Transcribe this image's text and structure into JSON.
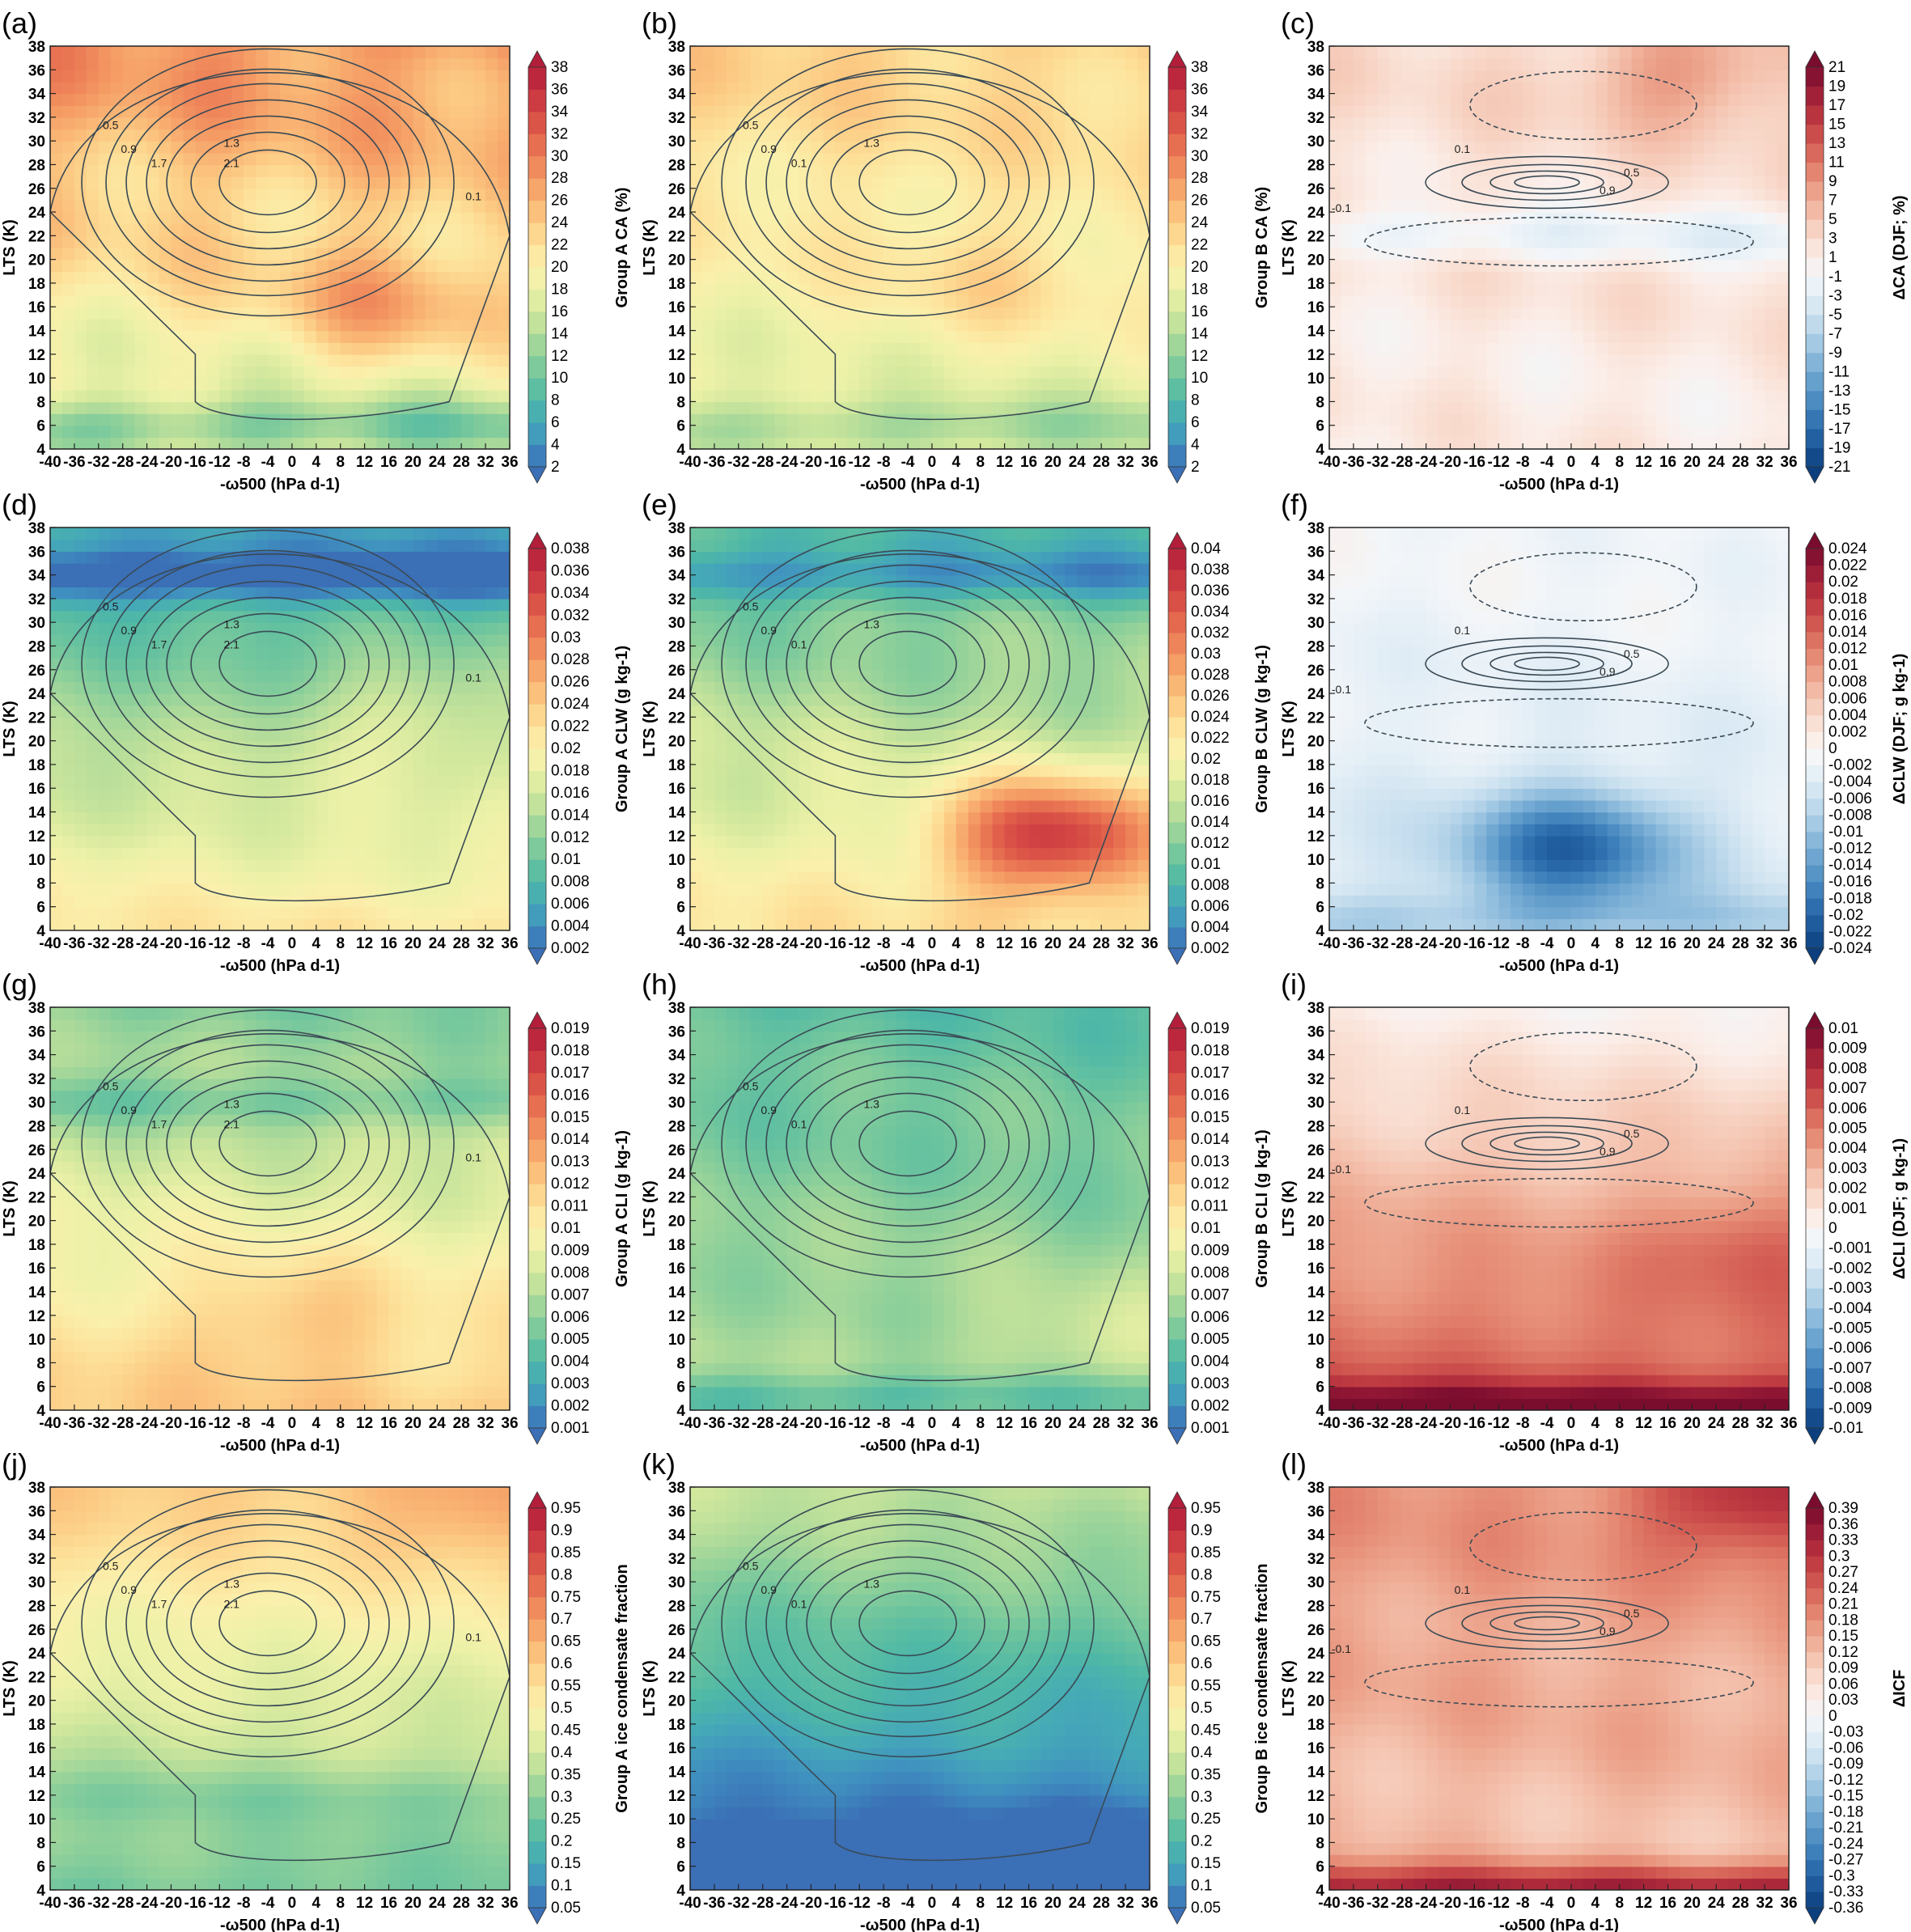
{
  "chart_data": [
    {
      "panel": "(a)",
      "type": "heatmap",
      "xlabel": "-ω500 (hPa d-1)",
      "ylabel": "LTS (K)",
      "x_ticks": [
        -40,
        -36,
        -32,
        -28,
        -24,
        -20,
        -16,
        -12,
        -8,
        -4,
        0,
        4,
        8,
        12,
        16,
        20,
        24,
        28,
        32,
        36
      ],
      "y_ticks": [
        4,
        6,
        8,
        10,
        12,
        14,
        16,
        18,
        20,
        22,
        24,
        26,
        28,
        30,
        32,
        34,
        36,
        38
      ],
      "xlim": [
        -40,
        36
      ],
      "ylim": [
        4,
        38
      ],
      "colorbar": {
        "title": "Group A CA (%)",
        "levels": [
          2,
          4,
          6,
          8,
          10,
          12,
          14,
          16,
          18,
          20,
          22,
          24,
          26,
          28,
          30,
          32,
          34,
          36,
          38
        ],
        "palette": "diverging-blue-green-yellow-red",
        "label_every": 1
      },
      "field": {
        "base": 22,
        "gradient": 0.35,
        "wave_amp": 3,
        "hot_x": 16,
        "hot_y": 16,
        "hot_amp": 6,
        "low_band_y": 6,
        "low_band_amp": -6
      },
      "contour_labels": [
        "0.5",
        "0.9",
        "1.3",
        "1.7",
        "2.1",
        "0.1"
      ],
      "contours_dashed": false
    },
    {
      "panel": "(b)",
      "type": "heatmap",
      "xlabel": "-ω500 (hPa d-1)",
      "ylabel": "LTS (K)",
      "x_ticks": [
        -40,
        -36,
        -32,
        -28,
        -24,
        -20,
        -16,
        -12,
        -8,
        -4,
        0,
        4,
        8,
        12,
        16,
        20,
        24,
        28,
        32,
        36
      ],
      "y_ticks": [
        4,
        6,
        8,
        10,
        12,
        14,
        16,
        18,
        20,
        22,
        24,
        26,
        28,
        30,
        32,
        34,
        36,
        38
      ],
      "xlim": [
        -40,
        36
      ],
      "ylim": [
        4,
        38
      ],
      "colorbar": {
        "title": "Group B CA (%)",
        "levels": [
          2,
          4,
          6,
          8,
          10,
          12,
          14,
          16,
          18,
          20,
          22,
          24,
          26,
          28,
          30,
          32,
          34,
          36,
          38
        ],
        "palette": "diverging-blue-green-yellow-red",
        "label_every": 1
      },
      "field": {
        "base": 20,
        "gradient": 0.2,
        "wave_amp": 2,
        "hot_x": 10,
        "hot_y": 18,
        "hot_amp": 3,
        "low_band_y": 6,
        "low_band_amp": -4
      },
      "contour_labels": [
        "0.5",
        "0.9",
        "1.3",
        "0.1"
      ],
      "contours_dashed": false
    },
    {
      "panel": "(c)",
      "type": "heatmap",
      "xlabel": "-ω500 (hPa d-1)",
      "ylabel": "LTS (K)",
      "x_ticks": [
        -40,
        -36,
        -32,
        -28,
        -24,
        -20,
        -16,
        -12,
        -8,
        -4,
        0,
        4,
        8,
        12,
        16,
        20,
        24,
        28,
        32,
        36
      ],
      "y_ticks": [
        4,
        6,
        8,
        10,
        12,
        14,
        16,
        18,
        20,
        22,
        24,
        26,
        28,
        30,
        32,
        34,
        36,
        38
      ],
      "xlim": [
        -40,
        36
      ],
      "ylim": [
        4,
        38
      ],
      "colorbar": {
        "title": "ΔCA (DJF; %)",
        "levels": [
          -21,
          -19,
          -17,
          -15,
          -13,
          -11,
          -9,
          -7,
          -5,
          -3,
          -1,
          1,
          3,
          5,
          7,
          9,
          11,
          13,
          15,
          17,
          19,
          21
        ],
        "palette": "diverging-red-blue",
        "label_every": 1
      },
      "field": {
        "base": 2,
        "gradient": 0.05,
        "wave_amp": 2,
        "hot_x": 20,
        "hot_y": 36,
        "hot_amp": 6,
        "low_band_y": 22,
        "low_band_amp": -4
      },
      "contour_labels": [
        "0.1",
        "0.5",
        "0.9",
        "-0.1"
      ],
      "contours_dashed": true
    },
    {
      "panel": "(d)",
      "type": "heatmap",
      "xlabel": "-ω500 (hPa d-1)",
      "ylabel": "LTS (K)",
      "x_ticks": [
        -40,
        -36,
        -32,
        -28,
        -24,
        -20,
        -16,
        -12,
        -8,
        -4,
        0,
        4,
        8,
        12,
        16,
        20,
        24,
        28,
        32,
        36
      ],
      "y_ticks": [
        4,
        6,
        8,
        10,
        12,
        14,
        16,
        18,
        20,
        22,
        24,
        26,
        28,
        30,
        32,
        34,
        36,
        38
      ],
      "xlim": [
        -40,
        36
      ],
      "ylim": [
        4,
        38
      ],
      "colorbar": {
        "title": "Group A CLW (g kg-1)",
        "levels": [
          0.002,
          0.004,
          0.006,
          0.008,
          0.01,
          0.012,
          0.014,
          0.016,
          0.018,
          0.02,
          0.022,
          0.024,
          0.026,
          0.028,
          0.03,
          0.032,
          0.034,
          0.036,
          0.038
        ],
        "palette": "diverging-blue-green-yellow-red",
        "label_every": 1
      },
      "field": {
        "base": 0.014,
        "gradient": -0.00045,
        "wave_amp": 0.0015,
        "hot_x": 20,
        "hot_y": 22,
        "hot_amp": 0.004,
        "low_band_y": 34,
        "low_band_amp": -0.008
      },
      "contour_labels": [
        "0.5",
        "0.9",
        "1.3",
        "1.7",
        "2.1",
        "0.1"
      ],
      "contours_dashed": false
    },
    {
      "panel": "(e)",
      "type": "heatmap",
      "xlabel": "-ω500 (hPa d-1)",
      "ylabel": "LTS (K)",
      "x_ticks": [
        -40,
        -36,
        -32,
        -28,
        -24,
        -20,
        -16,
        -12,
        -8,
        -4,
        0,
        4,
        8,
        12,
        16,
        20,
        24,
        28,
        32,
        36
      ],
      "y_ticks": [
        4,
        6,
        8,
        10,
        12,
        14,
        16,
        18,
        20,
        22,
        24,
        26,
        28,
        30,
        32,
        34,
        36,
        38
      ],
      "xlim": [
        -40,
        36
      ],
      "ylim": [
        4,
        38
      ],
      "colorbar": {
        "title": "Group B CLW (g kg-1)",
        "levels": [
          0.002,
          0.004,
          0.006,
          0.008,
          0.01,
          0.012,
          0.014,
          0.016,
          0.018,
          0.02,
          0.022,
          0.024,
          0.026,
          0.028,
          0.03,
          0.032,
          0.034,
          0.036,
          0.038,
          0.04
        ],
        "palette": "diverging-blue-green-yellow-red",
        "label_every": 1
      },
      "field": {
        "base": 0.016,
        "gradient": -0.0004,
        "wave_amp": 0.002,
        "hot_x": 20,
        "hot_y": 12,
        "hot_amp": 0.018,
        "low_band_y": 34,
        "low_band_amp": -0.006
      },
      "contour_labels": [
        "0.5",
        "0.9",
        "1.3",
        "0.1"
      ],
      "contours_dashed": false
    },
    {
      "panel": "(f)",
      "type": "heatmap",
      "xlabel": "-ω500 (hPa d-1)",
      "ylabel": "LTS (K)",
      "x_ticks": [
        -40,
        -36,
        -32,
        -28,
        -24,
        -20,
        -16,
        -12,
        -8,
        -4,
        0,
        4,
        8,
        12,
        16,
        20,
        24,
        28,
        32,
        36
      ],
      "y_ticks": [
        4,
        6,
        8,
        10,
        12,
        14,
        16,
        18,
        20,
        22,
        24,
        26,
        28,
        30,
        32,
        34,
        36,
        38
      ],
      "xlim": [
        -40,
        36
      ],
      "ylim": [
        4,
        38
      ],
      "colorbar": {
        "title": "ΔCLW (DJF; g kg-1)",
        "levels": [
          -0.024,
          -0.022,
          -0.02,
          -0.018,
          -0.016,
          -0.014,
          -0.012,
          -0.01,
          -0.008,
          -0.006,
          -0.004,
          -0.002,
          0,
          0.002,
          0.004,
          0.006,
          0.008,
          0.01,
          0.012,
          0.014,
          0.016,
          0.018,
          0.02,
          0.022,
          0.024
        ],
        "palette": "diverging-red-blue",
        "label_every": 1
      },
      "field": {
        "base": -0.003,
        "gradient": 0.0001,
        "wave_amp": 0.0015,
        "hot_x": 0,
        "hot_y": 11,
        "hot_amp": -0.016,
        "low_band_y": 5,
        "low_band_amp": -0.004
      },
      "contour_labels": [
        "0.1",
        "0.5",
        "0.9",
        "-0.1"
      ],
      "contours_dashed": true
    },
    {
      "panel": "(g)",
      "type": "heatmap",
      "xlabel": "-ω500 (hPa d-1)",
      "ylabel": "LTS (K)",
      "x_ticks": [
        -40,
        -36,
        -32,
        -28,
        -24,
        -20,
        -16,
        -12,
        -8,
        -4,
        0,
        4,
        8,
        12,
        16,
        20,
        24,
        28,
        32,
        36
      ],
      "y_ticks": [
        4,
        6,
        8,
        10,
        12,
        14,
        16,
        18,
        20,
        22,
        24,
        26,
        28,
        30,
        32,
        34,
        36,
        38
      ],
      "xlim": [
        -40,
        36
      ],
      "ylim": [
        4,
        38
      ],
      "colorbar": {
        "title": "Group A CLI (g kg-1)",
        "levels": [
          0.001,
          0.002,
          0.003,
          0.004,
          0.005,
          0.006,
          0.007,
          0.008,
          0.009,
          0.01,
          0.011,
          0.012,
          0.013,
          0.014,
          0.015,
          0.016,
          0.017,
          0.018,
          0.019
        ],
        "palette": "diverging-blue-green-yellow-red",
        "label_every": 1
      },
      "field": {
        "base": 0.009,
        "gradient": -0.00018,
        "wave_amp": 0.0008,
        "hot_x": 0,
        "hot_y": 12,
        "hot_amp": 0.002,
        "low_band_y": 30,
        "low_band_amp": -0.002
      },
      "contour_labels": [
        "0.5",
        "0.9",
        "1.3",
        "1.7",
        "2.1",
        "0.1"
      ],
      "contours_dashed": false
    },
    {
      "panel": "(h)",
      "type": "heatmap",
      "xlabel": "-ω500 (hPa d-1)",
      "ylabel": "LTS (K)",
      "x_ticks": [
        -40,
        -36,
        -32,
        -28,
        -24,
        -20,
        -16,
        -12,
        -8,
        -4,
        0,
        4,
        8,
        12,
        16,
        20,
        24,
        28,
        32,
        36
      ],
      "y_ticks": [
        4,
        6,
        8,
        10,
        12,
        14,
        16,
        18,
        20,
        22,
        24,
        26,
        28,
        30,
        32,
        34,
        36,
        38
      ],
      "xlim": [
        -40,
        36
      ],
      "ylim": [
        4,
        38
      ],
      "colorbar": {
        "title": "Group B CLI (g kg-1)",
        "levels": [
          0.001,
          0.002,
          0.003,
          0.004,
          0.005,
          0.006,
          0.007,
          0.008,
          0.009,
          0.01,
          0.011,
          0.012,
          0.013,
          0.014,
          0.015,
          0.016,
          0.017,
          0.018,
          0.019
        ],
        "palette": "diverging-blue-green-yellow-red",
        "label_every": 1
      },
      "field": {
        "base": 0.006,
        "gradient": -8e-05,
        "wave_amp": 0.0008,
        "hot_x": 30,
        "hot_y": 10,
        "hot_amp": 0.0015,
        "low_band_y": 5,
        "low_band_amp": -0.003
      },
      "contour_labels": [
        "0.5",
        "0.9",
        "1.3",
        "0.1"
      ],
      "contours_dashed": false
    },
    {
      "panel": "(i)",
      "type": "heatmap",
      "xlabel": "-ω500 (hPa d-1)",
      "ylabel": "LTS (K)",
      "x_ticks": [
        -40,
        -36,
        -32,
        -28,
        -24,
        -20,
        -16,
        -12,
        -8,
        -4,
        0,
        4,
        8,
        12,
        16,
        20,
        24,
        28,
        32,
        36
      ],
      "y_ticks": [
        4,
        6,
        8,
        10,
        12,
        14,
        16,
        18,
        20,
        22,
        24,
        26,
        28,
        30,
        32,
        34,
        36,
        38
      ],
      "xlim": [
        -40,
        36
      ],
      "ylim": [
        4,
        38
      ],
      "colorbar": {
        "title": "ΔCLI (DJF; g kg-1)",
        "levels": [
          -0.01,
          -0.009,
          -0.008,
          -0.007,
          -0.006,
          -0.005,
          -0.004,
          -0.003,
          -0.002,
          -0.001,
          0,
          0.001,
          0.002,
          0.003,
          0.004,
          0.005,
          0.006,
          0.007,
          0.008,
          0.009,
          0.01
        ],
        "palette": "diverging-red-blue",
        "label_every": 1
      },
      "field": {
        "base": 0.0035,
        "gradient": -0.00018,
        "wave_amp": 0.0006,
        "hot_x": 30,
        "hot_y": 18,
        "hot_amp": 0.002,
        "low_band_y": 4,
        "low_band_amp": 0.005
      },
      "contour_labels": [
        "0.1",
        "0.5",
        "0.9",
        "-0.1"
      ],
      "contours_dashed": true
    },
    {
      "panel": "(j)",
      "type": "heatmap",
      "xlabel": "-ω500 (hPa d-1)",
      "ylabel": "LTS (K)",
      "x_ticks": [
        -40,
        -36,
        -32,
        -28,
        -24,
        -20,
        -16,
        -12,
        -8,
        -4,
        0,
        4,
        8,
        12,
        16,
        20,
        24,
        28,
        32,
        36
      ],
      "y_ticks": [
        4,
        6,
        8,
        10,
        12,
        14,
        16,
        18,
        20,
        22,
        24,
        26,
        28,
        30,
        32,
        34,
        36,
        38
      ],
      "xlim": [
        -40,
        36
      ],
      "ylim": [
        4,
        38
      ],
      "colorbar": {
        "title": "Group A ice condensate fraction",
        "levels": [
          0.05,
          0.1,
          0.15,
          0.2,
          0.25,
          0.3,
          0.35,
          0.4,
          0.45,
          0.5,
          0.55,
          0.6,
          0.65,
          0.7,
          0.75,
          0.8,
          0.85,
          0.9,
          0.95
        ],
        "palette": "diverging-blue-green-yellow-red",
        "label_every": 1
      },
      "field": {
        "base": 0.42,
        "gradient": 0.01,
        "wave_amp": 0.03,
        "hot_x": 30,
        "hot_y": 36,
        "hot_amp": 0.1,
        "low_band_y": 12,
        "low_band_amp": -0.05
      },
      "contour_labels": [
        "0.5",
        "0.9",
        "1.3",
        "1.7",
        "2.1",
        "0.1"
      ],
      "contours_dashed": false
    },
    {
      "panel": "(k)",
      "type": "heatmap",
      "xlabel": "-ω500 (hPa d-1)",
      "ylabel": "LTS (K)",
      "x_ticks": [
        -40,
        -36,
        -32,
        -28,
        -24,
        -20,
        -16,
        -12,
        -8,
        -4,
        0,
        4,
        8,
        12,
        16,
        20,
        24,
        28,
        32,
        36
      ],
      "y_ticks": [
        4,
        6,
        8,
        10,
        12,
        14,
        16,
        18,
        20,
        22,
        24,
        26,
        28,
        30,
        32,
        34,
        36,
        38
      ],
      "xlim": [
        -40,
        36
      ],
      "ylim": [
        4,
        38
      ],
      "colorbar": {
        "title": "Group B ice condensate fraction",
        "levels": [
          0.05,
          0.1,
          0.15,
          0.2,
          0.25,
          0.3,
          0.35,
          0.4,
          0.45,
          0.5,
          0.55,
          0.6,
          0.65,
          0.7,
          0.75,
          0.8,
          0.85,
          0.9,
          0.95
        ],
        "palette": "diverging-blue-green-yellow-red",
        "label_every": 1
      },
      "field": {
        "base": 0.18,
        "gradient": 0.011,
        "wave_amp": 0.03,
        "hot_x": 30,
        "hot_y": 6,
        "hot_amp": -0.06,
        "low_band_y": 8,
        "low_band_amp": -0.04
      },
      "contour_labels": [
        "0.5",
        "0.9",
        "1.3",
        "0.1"
      ],
      "contours_dashed": false
    },
    {
      "panel": "(l)",
      "type": "heatmap",
      "xlabel": "-ω500 (hPa d-1)",
      "ylabel": "LTS (K)",
      "x_ticks": [
        -40,
        -36,
        -32,
        -28,
        -24,
        -20,
        -16,
        -12,
        -8,
        -4,
        0,
        4,
        8,
        12,
        16,
        20,
        24,
        28,
        32,
        36
      ],
      "y_ticks": [
        4,
        6,
        8,
        10,
        12,
        14,
        16,
        18,
        20,
        22,
        24,
        26,
        28,
        30,
        32,
        34,
        36,
        38
      ],
      "xlim": [
        -40,
        36
      ],
      "ylim": [
        4,
        38
      ],
      "colorbar": {
        "title": "ΔICF",
        "levels": [
          -0.36,
          -0.33,
          -0.3,
          -0.27,
          -0.24,
          -0.21,
          -0.18,
          -0.15,
          -0.12,
          -0.09,
          -0.06,
          -0.03,
          0,
          0.03,
          0.06,
          0.09,
          0.12,
          0.15,
          0.18,
          0.21,
          0.24,
          0.27,
          0.3,
          0.33,
          0.36,
          0.39
        ],
        "palette": "diverging-red-blue",
        "label_every": 1
      },
      "field": {
        "base": 0.14,
        "gradient": 0.002,
        "wave_amp": 0.03,
        "hot_x": 30,
        "hot_y": 37,
        "hot_amp": 0.15,
        "low_band_y": 4,
        "low_band_amp": 0.22
      },
      "contour_labels": [
        "0.1",
        "0.5",
        "0.9",
        "-0.1"
      ],
      "contours_dashed": true
    }
  ]
}
